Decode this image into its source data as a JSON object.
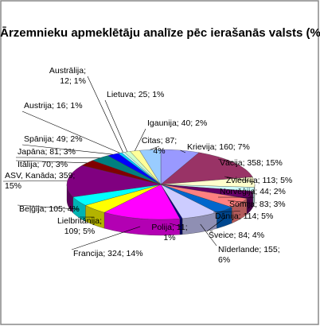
{
  "chart_data": {
    "type": "pie3d",
    "title": "Ārzemnieku apmeklētāju analīze pēc ierašanās valsts (%)",
    "labels": [
      "Krievija; 160; 7%",
      "Vācija; 358; 15%",
      "Zviedrija; 113; 5%",
      "Norvēģija; 44; 2%",
      "Somija; 83; 3%",
      "Dānija; 114; 5%",
      "Šveice; 84; 4%",
      "Nīderlande; 155;\n6%",
      "Polija; 11;\n1%",
      "Francija; 324; 14%",
      "Lielbritānija;\n109; 5%",
      "Beļģija; 105; 4%",
      "ASV, Kanāda; 359;\n15%",
      "Itālija; 70; 3%",
      "Japāna; 81; 3%",
      "Spānija; 49; 2%",
      "Austrija; 16; 1%",
      "Austrālija;\n12; 1%",
      "Lietuva; 25; 1%",
      "Igaunija; 40; 2%",
      "Citas; 87;\n4%"
    ],
    "values": [
      160,
      358,
      113,
      44,
      83,
      114,
      84,
      155,
      11,
      324,
      109,
      105,
      359,
      70,
      81,
      49,
      16,
      12,
      25,
      40,
      87
    ],
    "percents": [
      7,
      15,
      5,
      2,
      3,
      5,
      4,
      6,
      1,
      14,
      5,
      4,
      15,
      3,
      3,
      2,
      1,
      1,
      1,
      2,
      4
    ],
    "colors": [
      "#9999ff",
      "#993366",
      "#ffffcc",
      "#ccffff",
      "#660066",
      "#ff8080",
      "#0066cc",
      "#ccccff",
      "#000080",
      "#ff00ff",
      "#ffff00",
      "#00ffff",
      "#800080",
      "#800000",
      "#008080",
      "#0000ff",
      "#00ccff",
      "#ccffff",
      "#ccffcc",
      "#ffff99",
      "#99ccff"
    ]
  }
}
